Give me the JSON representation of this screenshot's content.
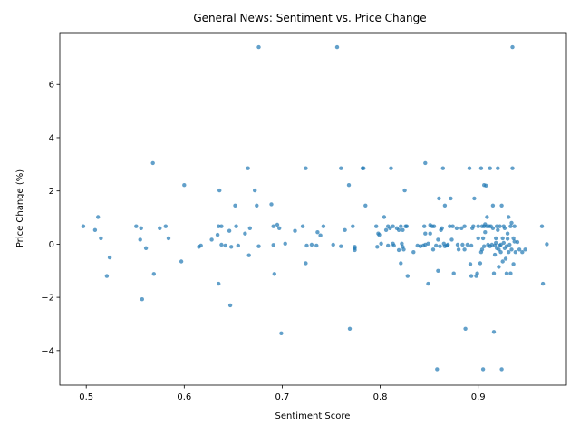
{
  "chart_data": {
    "type": "scatter",
    "title": "General News: Sentiment vs. Price Change",
    "xlabel": "Sentiment Score",
    "ylabel": "Price Change (%)",
    "xlim": [
      0.473,
      0.99
    ],
    "ylim": [
      -5.3,
      7.95
    ],
    "xticks": [
      0.5,
      0.6,
      0.7,
      0.8,
      0.9
    ],
    "xtick_labels": [
      "0.5",
      "0.6",
      "0.7",
      "0.8",
      "0.9"
    ],
    "yticks": [
      -4,
      -2,
      0,
      2,
      4,
      6
    ],
    "ytick_labels": [
      "−4",
      "−2",
      "0",
      "2",
      "4",
      "6"
    ],
    "grid": false,
    "marker_color": "#1f77b4",
    "marker_alpha": 0.7,
    "points": [
      [
        0.497,
        0.67
      ],
      [
        0.509,
        0.53
      ],
      [
        0.512,
        1.02
      ],
      [
        0.515,
        0.22
      ],
      [
        0.521,
        -1.2
      ],
      [
        0.524,
        -0.5
      ],
      [
        0.551,
        0.67
      ],
      [
        0.555,
        0.17
      ],
      [
        0.556,
        0.6
      ],
      [
        0.557,
        -2.07
      ],
      [
        0.561,
        -0.15
      ],
      [
        0.568,
        3.05
      ],
      [
        0.569,
        -1.12
      ],
      [
        0.575,
        0.6
      ],
      [
        0.581,
        0.67
      ],
      [
        0.584,
        0.22
      ],
      [
        0.597,
        -0.65
      ],
      [
        0.6,
        2.22
      ],
      [
        0.615,
        -0.1
      ],
      [
        0.617,
        -0.05
      ],
      [
        0.628,
        0.17
      ],
      [
        0.634,
        0.35
      ],
      [
        0.635,
        0.67
      ],
      [
        0.635,
        -1.49
      ],
      [
        0.636,
        2.02
      ],
      [
        0.638,
        0.67
      ],
      [
        0.638,
        -0.02
      ],
      [
        0.642,
        -0.05
      ],
      [
        0.646,
        0.5
      ],
      [
        0.647,
        -2.3
      ],
      [
        0.648,
        -0.1
      ],
      [
        0.652,
        1.45
      ],
      [
        0.653,
        0.67
      ],
      [
        0.655,
        -0.05
      ],
      [
        0.662,
        0.4
      ],
      [
        0.665,
        2.85
      ],
      [
        0.666,
        -0.42
      ],
      [
        0.667,
        0.6
      ],
      [
        0.672,
        2.02
      ],
      [
        0.674,
        1.45
      ],
      [
        0.676,
        7.4
      ],
      [
        0.676,
        -0.08
      ],
      [
        0.689,
        1.5
      ],
      [
        0.691,
        0.67
      ],
      [
        0.691,
        -0.03
      ],
      [
        0.692,
        -1.12
      ],
      [
        0.695,
        0.73
      ],
      [
        0.697,
        0.6
      ],
      [
        0.699,
        -3.35
      ],
      [
        0.703,
        0.02
      ],
      [
        0.713,
        0.5
      ],
      [
        0.721,
        0.67
      ],
      [
        0.724,
        2.85
      ],
      [
        0.724,
        -0.72
      ],
      [
        0.725,
        -0.05
      ],
      [
        0.73,
        -0.02
      ],
      [
        0.735,
        -0.05
      ],
      [
        0.736,
        0.45
      ],
      [
        0.739,
        0.33
      ],
      [
        0.742,
        0.67
      ],
      [
        0.752,
        -0.02
      ],
      [
        0.756,
        7.4
      ],
      [
        0.76,
        2.85
      ],
      [
        0.76,
        -0.08
      ],
      [
        0.764,
        0.53
      ],
      [
        0.768,
        2.22
      ],
      [
        0.769,
        -3.18
      ],
      [
        0.772,
        0.67
      ],
      [
        0.774,
        -0.1
      ],
      [
        0.774,
        -0.22
      ],
      [
        0.774,
        -0.15
      ],
      [
        0.782,
        2.85
      ],
      [
        0.783,
        2.85
      ],
      [
        0.785,
        1.45
      ],
      [
        0.796,
        0.67
      ],
      [
        0.797,
        -0.1
      ],
      [
        0.798,
        0.4
      ],
      [
        0.799,
        0.35
      ],
      [
        0.801,
        0.02
      ],
      [
        0.804,
        1.02
      ],
      [
        0.806,
        0.53
      ],
      [
        0.808,
        0.67
      ],
      [
        0.808,
        -0.05
      ],
      [
        0.81,
        0.6
      ],
      [
        0.811,
        2.85
      ],
      [
        0.813,
        0.67
      ],
      [
        0.813,
        0.02
      ],
      [
        0.814,
        -0.05
      ],
      [
        0.817,
        0.6
      ],
      [
        0.819,
        -0.22
      ],
      [
        0.819,
        0.53
      ],
      [
        0.821,
        -0.72
      ],
      [
        0.821,
        0.67
      ],
      [
        0.822,
        0.02
      ],
      [
        0.823,
        0.53
      ],
      [
        0.823,
        -0.1
      ],
      [
        0.824,
        -0.2
      ],
      [
        0.825,
        2.02
      ],
      [
        0.826,
        0.67
      ],
      [
        0.827,
        0.67
      ],
      [
        0.828,
        -1.2
      ],
      [
        0.834,
        -0.3
      ],
      [
        0.838,
        -0.05
      ],
      [
        0.841,
        -0.08
      ],
      [
        0.844,
        -0.05
      ],
      [
        0.845,
        0.67
      ],
      [
        0.846,
        0.4
      ],
      [
        0.846,
        3.05
      ],
      [
        0.846,
        -0.02
      ],
      [
        0.849,
        0.02
      ],
      [
        0.849,
        -1.49
      ],
      [
        0.851,
        0.72
      ],
      [
        0.851,
        0.4
      ],
      [
        0.853,
        0.67
      ],
      [
        0.854,
        -0.2
      ],
      [
        0.855,
        0.67
      ],
      [
        0.857,
        -0.05
      ],
      [
        0.858,
        -4.7
      ],
      [
        0.859,
        0.17
      ],
      [
        0.859,
        -1.0
      ],
      [
        0.86,
        1.72
      ],
      [
        0.861,
        -0.08
      ],
      [
        0.862,
        0.53
      ],
      [
        0.863,
        0.6
      ],
      [
        0.864,
        2.85
      ],
      [
        0.865,
        0.02
      ],
      [
        0.866,
        -0.08
      ],
      [
        0.866,
        1.45
      ],
      [
        0.868,
        -0.05
      ],
      [
        0.869,
        -0.02
      ],
      [
        0.871,
        0.67
      ],
      [
        0.872,
        1.72
      ],
      [
        0.873,
        0.17
      ],
      [
        0.874,
        0.67
      ],
      [
        0.875,
        -1.1
      ],
      [
        0.878,
        0.6
      ],
      [
        0.879,
        -0.02
      ],
      [
        0.88,
        -0.2
      ],
      [
        0.883,
        0.6
      ],
      [
        0.884,
        -0.02
      ],
      [
        0.886,
        -0.2
      ],
      [
        0.886,
        0.67
      ],
      [
        0.887,
        -3.18
      ],
      [
        0.889,
        -0.02
      ],
      [
        0.891,
        2.85
      ],
      [
        0.892,
        -0.75
      ],
      [
        0.893,
        -1.2
      ],
      [
        0.893,
        -0.05
      ],
      [
        0.894,
        0.6
      ],
      [
        0.895,
        0.67
      ],
      [
        0.896,
        1.72
      ],
      [
        0.898,
        -1.2
      ],
      [
        0.899,
        -1.1
      ],
      [
        0.9,
        0.67
      ],
      [
        0.9,
        0.22
      ],
      [
        0.902,
        -0.72
      ],
      [
        0.903,
        2.85
      ],
      [
        0.903,
        -0.3
      ],
      [
        0.904,
        0.67
      ],
      [
        0.904,
        -0.2
      ],
      [
        0.905,
        0.22
      ],
      [
        0.905,
        -4.7
      ],
      [
        0.906,
        2.22
      ],
      [
        0.906,
        0.67
      ],
      [
        0.906,
        -0.08
      ],
      [
        0.907,
        0.45
      ],
      [
        0.907,
        0.75
      ],
      [
        0.908,
        2.2
      ],
      [
        0.909,
        0.67
      ],
      [
        0.909,
        1.02
      ],
      [
        0.91,
        -0.02
      ],
      [
        0.911,
        0.67
      ],
      [
        0.912,
        -0.08
      ],
      [
        0.912,
        2.85
      ],
      [
        0.913,
        0.67
      ],
      [
        0.914,
        -0.02
      ],
      [
        0.915,
        1.45
      ],
      [
        0.915,
        0.6
      ],
      [
        0.916,
        -3.3
      ],
      [
        0.916,
        -1.1
      ],
      [
        0.917,
        -0.4
      ],
      [
        0.917,
        -0.05
      ],
      [
        0.918,
        0.22
      ],
      [
        0.918,
        0.05
      ],
      [
        0.919,
        0.67
      ],
      [
        0.919,
        -0.15
      ],
      [
        0.92,
        2.85
      ],
      [
        0.92,
        0.53
      ],
      [
        0.921,
        -0.2
      ],
      [
        0.921,
        -0.85
      ],
      [
        0.922,
        0.67
      ],
      [
        0.922,
        -0.05
      ],
      [
        0.923,
        -0.3
      ],
      [
        0.923,
        -0.02
      ],
      [
        0.924,
        -4.7
      ],
      [
        0.924,
        1.45
      ],
      [
        0.925,
        0.22
      ],
      [
        0.925,
        -0.65
      ],
      [
        0.926,
        0.67
      ],
      [
        0.926,
        0.05
      ],
      [
        0.927,
        -0.15
      ],
      [
        0.927,
        0.6
      ],
      [
        0.928,
        -0.55
      ],
      [
        0.929,
        -1.1
      ],
      [
        0.929,
        -0.08
      ],
      [
        0.93,
        0.4
      ],
      [
        0.93,
        0.2
      ],
      [
        0.931,
        1.02
      ],
      [
        0.931,
        -0.3
      ],
      [
        0.932,
        -0.02
      ],
      [
        0.933,
        0.67
      ],
      [
        0.933,
        -1.1
      ],
      [
        0.934,
        0.8
      ],
      [
        0.934,
        -0.2
      ],
      [
        0.935,
        2.85
      ],
      [
        0.935,
        7.4
      ],
      [
        0.936,
        0.22
      ],
      [
        0.936,
        -0.75
      ],
      [
        0.937,
        0.1
      ],
      [
        0.937,
        0.67
      ],
      [
        0.938,
        -0.3
      ],
      [
        0.94,
        0.08
      ],
      [
        0.942,
        -0.2
      ],
      [
        0.945,
        -0.3
      ],
      [
        0.948,
        -0.2
      ],
      [
        0.965,
        0.67
      ],
      [
        0.966,
        -1.49
      ],
      [
        0.97,
        0.0
      ]
    ]
  }
}
